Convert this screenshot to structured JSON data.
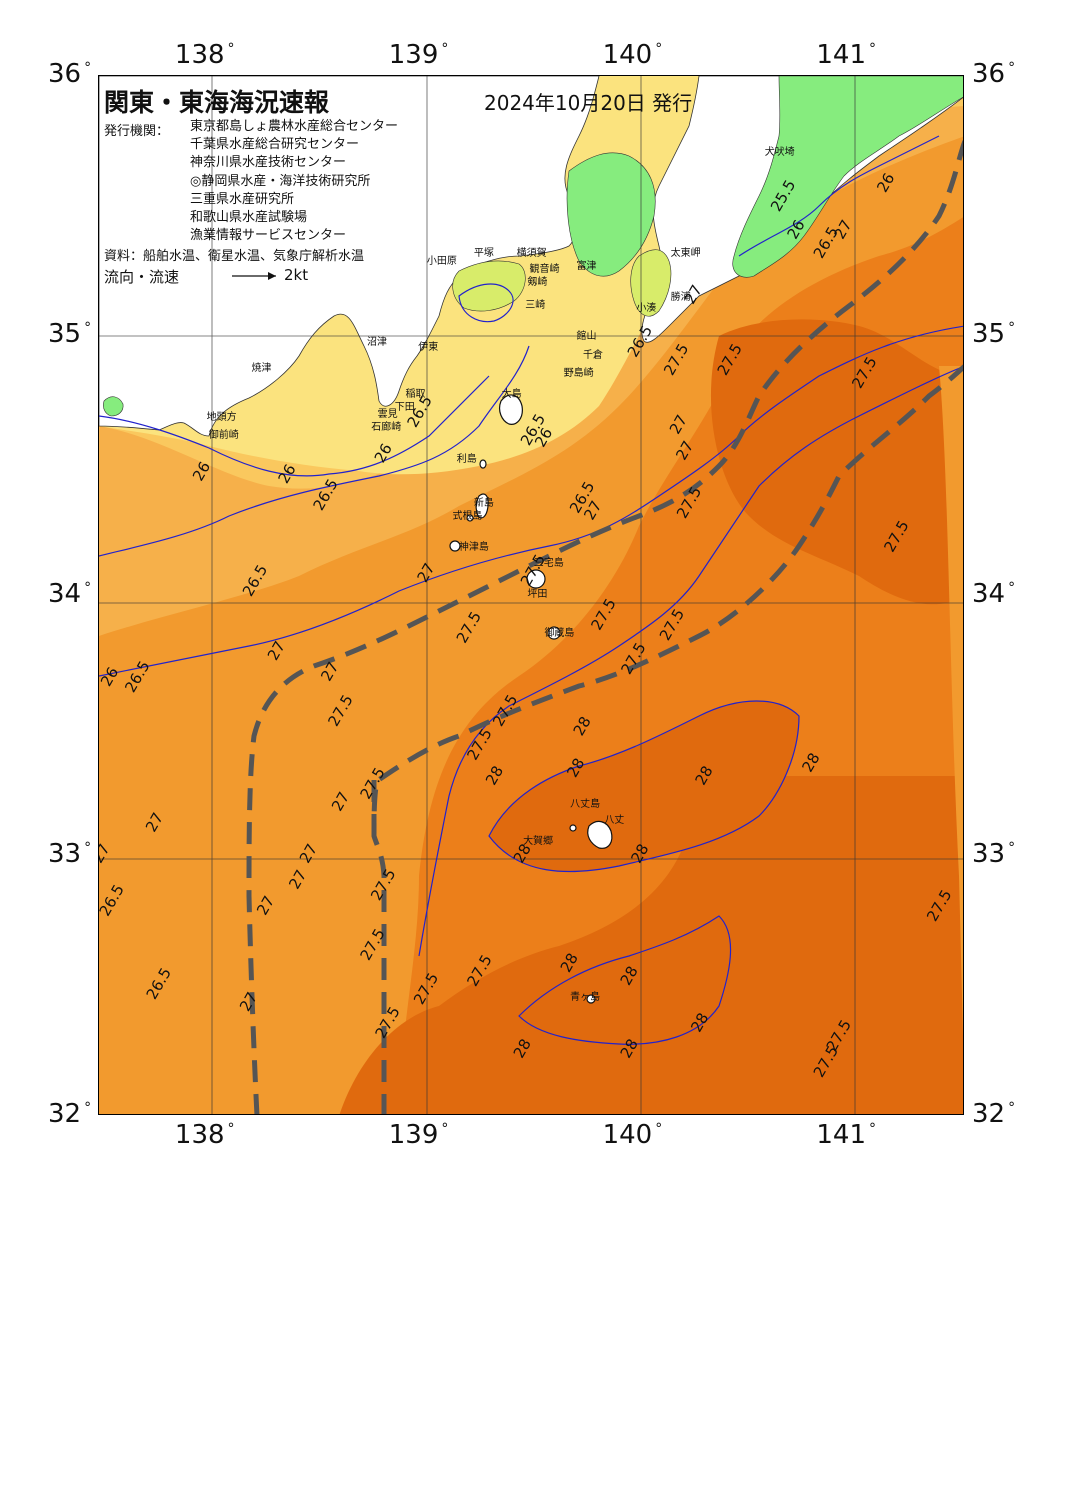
{
  "header": {
    "title": "関東・東海海況速報",
    "date": "2024年10月20日 発行",
    "org_label": "発行機関：",
    "organizations": [
      "東京都島しょ農林水産総合センター",
      "千葉県水産総合研究センター",
      "神奈川県水産技術センター",
      "◎静岡県水産・海洋技術研究所",
      "三重県水産研究所",
      "和歌山県水産試験場",
      "漁業情報サービスセンター"
    ],
    "source": "資料：船舶水温、衛星水温、気象庁解析水温",
    "flow_label": "流向・流速",
    "flow_unit": "2kt"
  },
  "axes": {
    "lon_top": [
      "138",
      "139",
      "140",
      "141"
    ],
    "lon_bottom": [
      "138",
      "139",
      "140",
      "141"
    ],
    "lat_left": [
      "36",
      "35",
      "34",
      "33",
      "32"
    ],
    "lat_right": [
      "36",
      "35",
      "34",
      "33",
      "32"
    ],
    "lon_range": [
      137.5,
      141.55
    ],
    "lat_range": [
      32,
      36
    ]
  },
  "colors": {
    "land_green": "#86EC7E",
    "land_yellow_green": "#D8EC6A",
    "cold_water": "#FBE37E",
    "water_26": "#FAC85E",
    "water_265": "#F6B04A",
    "water_27": "#F29A2E",
    "water_275": "#EC7F1A",
    "water_28": "#E06A0E",
    "isotherm": "#2222CC",
    "current_axis": "#555555",
    "coast_white": "#ffffff"
  },
  "places": [
    {
      "name": "小田原",
      "lon": 139.08,
      "lat": 35.3
    },
    {
      "name": "平塚",
      "lon": 139.3,
      "lat": 35.33
    },
    {
      "name": "横須賀",
      "lon": 139.5,
      "lat": 35.33
    },
    {
      "name": "観音崎",
      "lon": 139.56,
      "lat": 35.27
    },
    {
      "name": "富津",
      "lon": 139.78,
      "lat": 35.28
    },
    {
      "name": "剱崎",
      "lon": 139.55,
      "lat": 35.22
    },
    {
      "name": "三崎",
      "lon": 139.54,
      "lat": 35.13
    },
    {
      "name": "館山",
      "lon": 139.78,
      "lat": 35.01
    },
    {
      "name": "千倉",
      "lon": 139.81,
      "lat": 34.94
    },
    {
      "name": "野島崎",
      "lon": 139.72,
      "lat": 34.87
    },
    {
      "name": "小湊",
      "lon": 140.06,
      "lat": 35.12
    },
    {
      "name": "勝浦",
      "lon": 140.22,
      "lat": 35.16
    },
    {
      "name": "太東岬",
      "lon": 140.22,
      "lat": 35.33
    },
    {
      "name": "犬吠埼",
      "lon": 140.66,
      "lat": 35.72
    },
    {
      "name": "沼津",
      "lon": 138.8,
      "lat": 34.99
    },
    {
      "name": "伊東",
      "lon": 139.04,
      "lat": 34.97
    },
    {
      "name": "焼津",
      "lon": 138.26,
      "lat": 34.89
    },
    {
      "name": "稲取",
      "lon": 138.98,
      "lat": 34.79
    },
    {
      "name": "下田",
      "lon": 138.93,
      "lat": 34.74
    },
    {
      "name": "雲見",
      "lon": 138.85,
      "lat": 34.71
    },
    {
      "name": "石廊崎",
      "lon": 138.82,
      "lat": 34.66
    },
    {
      "name": "地頭方",
      "lon": 138.05,
      "lat": 34.7
    },
    {
      "name": "御前崎",
      "lon": 138.06,
      "lat": 34.63
    },
    {
      "name": "大島",
      "lon": 139.43,
      "lat": 34.79
    },
    {
      "name": "利島",
      "lon": 139.22,
      "lat": 34.54
    },
    {
      "name": "新島",
      "lon": 139.3,
      "lat": 34.37
    },
    {
      "name": "式根島",
      "lon": 139.2,
      "lat": 34.32
    },
    {
      "name": "神津島",
      "lon": 139.23,
      "lat": 34.2
    },
    {
      "name": "三宅島",
      "lon": 139.58,
      "lat": 34.14
    },
    {
      "name": "坪田",
      "lon": 139.55,
      "lat": 34.02
    },
    {
      "name": "御蔵島",
      "lon": 139.63,
      "lat": 33.87
    },
    {
      "name": "八丈島",
      "lon": 139.75,
      "lat": 33.21
    },
    {
      "name": "八丈",
      "lon": 139.91,
      "lat": 33.15
    },
    {
      "name": "大賀郷",
      "lon": 139.53,
      "lat": 33.07
    },
    {
      "name": "青ヶ島",
      "lon": 139.75,
      "lat": 32.47
    }
  ],
  "isotherm_labels": [
    {
      "text": "26",
      "lon": 137.57,
      "lat": 33.68
    },
    {
      "text": "26.5",
      "lon": 137.7,
      "lat": 33.68
    },
    {
      "text": "26.5",
      "lon": 137.58,
      "lat": 32.82
    },
    {
      "text": "26.5",
      "lon": 137.8,
      "lat": 32.5
    },
    {
      "text": "26.5",
      "lon": 138.25,
      "lat": 34.05
    },
    {
      "text": "27",
      "lon": 137.53,
      "lat": 33.0
    },
    {
      "text": "27",
      "lon": 137.78,
      "lat": 33.12
    },
    {
      "text": "27",
      "lon": 138.22,
      "lat": 32.43
    },
    {
      "text": "27",
      "lon": 138.35,
      "lat": 33.78
    },
    {
      "text": "27",
      "lon": 138.45,
      "lat": 32.9
    },
    {
      "text": "27",
      "lon": 138.5,
      "lat": 33.0
    },
    {
      "text": "27",
      "lon": 138.6,
      "lat": 33.7
    },
    {
      "text": "27",
      "lon": 138.65,
      "lat": 33.2
    },
    {
      "text": "27",
      "lon": 138.3,
      "lat": 32.8
    },
    {
      "text": "27.5",
      "lon": 138.65,
      "lat": 33.55
    },
    {
      "text": "27.5",
      "lon": 138.8,
      "lat": 33.27
    },
    {
      "text": "27.5",
      "lon": 138.8,
      "lat": 32.65
    },
    {
      "text": "27.5",
      "lon": 138.87,
      "lat": 32.35
    },
    {
      "text": "26.5",
      "lon": 138.58,
      "lat": 34.38
    },
    {
      "text": "26",
      "lon": 138.4,
      "lat": 34.46
    },
    {
      "text": "26",
      "lon": 138.0,
      "lat": 34.47
    },
    {
      "text": "26",
      "lon": 138.85,
      "lat": 34.54
    },
    {
      "text": "26.5",
      "lon": 139.02,
      "lat": 34.7
    },
    {
      "text": "26.5",
      "lon": 139.55,
      "lat": 34.63
    },
    {
      "text": "26.5",
      "lon": 139.78,
      "lat": 34.37
    },
    {
      "text": "26",
      "lon": 139.6,
      "lat": 34.6
    },
    {
      "text": "27",
      "lon": 139.05,
      "lat": 34.08
    },
    {
      "text": "27",
      "lon": 139.83,
      "lat": 34.32
    },
    {
      "text": "27.5",
      "lon": 139.55,
      "lat": 34.09
    },
    {
      "text": "27.5",
      "lon": 139.25,
      "lat": 33.87
    },
    {
      "text": "27.5",
      "lon": 139.88,
      "lat": 33.92
    },
    {
      "text": "27.5",
      "lon": 140.2,
      "lat": 33.88
    },
    {
      "text": "27.5",
      "lon": 140.02,
      "lat": 33.75
    },
    {
      "text": "27.5",
      "lon": 139.42,
      "lat": 33.55
    },
    {
      "text": "27.5",
      "lon": 139.3,
      "lat": 33.42
    },
    {
      "text": "27.5",
      "lon": 139.05,
      "lat": 32.48
    },
    {
      "text": "27.5",
      "lon": 138.85,
      "lat": 32.88
    },
    {
      "text": "27.5",
      "lon": 139.3,
      "lat": 32.55
    },
    {
      "text": "28",
      "lon": 139.78,
      "lat": 33.49
    },
    {
      "text": "28",
      "lon": 139.75,
      "lat": 33.33
    },
    {
      "text": "28",
      "lon": 139.37,
      "lat": 33.3
    },
    {
      "text": "28",
      "lon": 139.5,
      "lat": 33.0
    },
    {
      "text": "28",
      "lon": 140.05,
      "lat": 33.0
    },
    {
      "text": "28",
      "lon": 140.35,
      "lat": 33.3
    },
    {
      "text": "28",
      "lon": 140.85,
      "lat": 33.35
    },
    {
      "text": "28",
      "lon": 139.72,
      "lat": 32.58
    },
    {
      "text": "28",
      "lon": 140.0,
      "lat": 32.53
    },
    {
      "text": "28",
      "lon": 140.33,
      "lat": 32.35
    },
    {
      "text": "28",
      "lon": 140.0,
      "lat": 32.25
    },
    {
      "text": "28",
      "lon": 139.5,
      "lat": 32.25
    },
    {
      "text": "26.5",
      "lon": 140.05,
      "lat": 34.97
    },
    {
      "text": "27.5",
      "lon": 140.22,
      "lat": 34.9
    },
    {
      "text": "27",
      "lon": 140.3,
      "lat": 35.15
    },
    {
      "text": "27",
      "lon": 140.23,
      "lat": 34.65
    },
    {
      "text": "27.5",
      "lon": 140.47,
      "lat": 34.9
    },
    {
      "text": "27.5",
      "lon": 140.28,
      "lat": 34.35
    },
    {
      "text": "27",
      "lon": 140.26,
      "lat": 34.55
    },
    {
      "text": "27.5",
      "lon": 141.1,
      "lat": 34.85
    },
    {
      "text": "27.5",
      "lon": 141.25,
      "lat": 34.22
    },
    {
      "text": "27.5",
      "lon": 141.45,
      "lat": 32.8
    },
    {
      "text": "27.5",
      "lon": 140.92,
      "lat": 32.2
    },
    {
      "text": "27.5",
      "lon": 140.98,
      "lat": 32.3
    },
    {
      "text": "26",
      "lon": 140.78,
      "lat": 35.4
    },
    {
      "text": "26",
      "lon": 141.2,
      "lat": 35.58
    },
    {
      "text": "25.5",
      "lon": 140.72,
      "lat": 35.53
    },
    {
      "text": "26.5",
      "lon": 140.92,
      "lat": 35.35
    },
    {
      "text": "27",
      "lon": 141.0,
      "lat": 35.4
    }
  ]
}
